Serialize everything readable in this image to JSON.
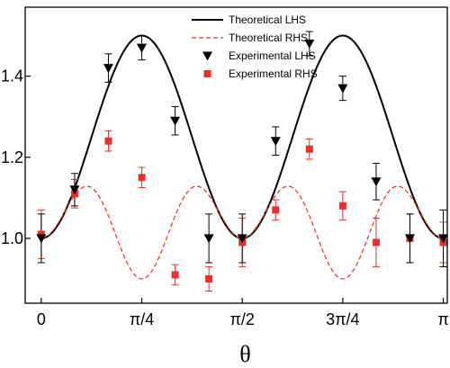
{
  "chart_data": {
    "type": "line",
    "xlabel": "θ",
    "ylabel": "",
    "xlim": [
      -0.04,
      1.01
    ],
    "ylim": [
      0.84,
      1.57
    ],
    "x_unit": "π",
    "x_ticks": [
      {
        "value": 0,
        "label": "0"
      },
      {
        "value": 0.25,
        "label": "π/4"
      },
      {
        "value": 0.5,
        "label": "π/2"
      },
      {
        "value": 0.75,
        "label": "3π/4"
      },
      {
        "value": 1,
        "label": "π"
      }
    ],
    "y_ticks": [
      {
        "value": 1.0,
        "label": "1.0"
      },
      {
        "value": 1.2,
        "label": "1.2"
      },
      {
        "value": 1.4,
        "label": "1.4"
      }
    ],
    "grid": false,
    "legend_position": "top-right",
    "series": [
      {
        "name": "Theoretical LHS",
        "kind": "line",
        "color": "#000000",
        "dash": "solid"
      },
      {
        "name": "Theoretical RHS",
        "kind": "line",
        "color": "#e8302e",
        "dash": "dashed"
      },
      {
        "name": "Experimental LHS",
        "kind": "scatter",
        "marker": "triangle-down",
        "color": "#000000",
        "x": [
          0,
          0.083,
          0.167,
          0.25,
          0.333,
          0.417,
          0.5,
          0.583,
          0.667,
          0.75,
          0.833,
          0.917,
          1.0
        ],
        "y": [
          1.0,
          1.12,
          1.42,
          1.47,
          1.29,
          1.0,
          1.0,
          1.24,
          1.48,
          1.37,
          1.14,
          1.0,
          1.0
        ],
        "err": [
          0.06,
          0.04,
          0.035,
          0.03,
          0.035,
          0.06,
          0.06,
          0.035,
          0.03,
          0.03,
          0.045,
          0.06,
          0.07
        ]
      },
      {
        "name": "Experimental RHS",
        "kind": "scatter",
        "marker": "square",
        "color": "#e8302e",
        "x": [
          0,
          0.083,
          0.167,
          0.25,
          0.333,
          0.417,
          0.5,
          0.583,
          0.667,
          0.75,
          0.833,
          0.917,
          1.0
        ],
        "y": [
          1.01,
          1.11,
          1.24,
          1.15,
          0.91,
          0.9,
          0.99,
          1.07,
          1.22,
          1.08,
          0.99,
          1.0,
          0.99
        ],
        "err": [
          0.06,
          0.035,
          0.025,
          0.025,
          0.025,
          0.03,
          0.06,
          0.025,
          0.025,
          0.035,
          0.06,
          0.06,
          0.05
        ]
      }
    ]
  }
}
